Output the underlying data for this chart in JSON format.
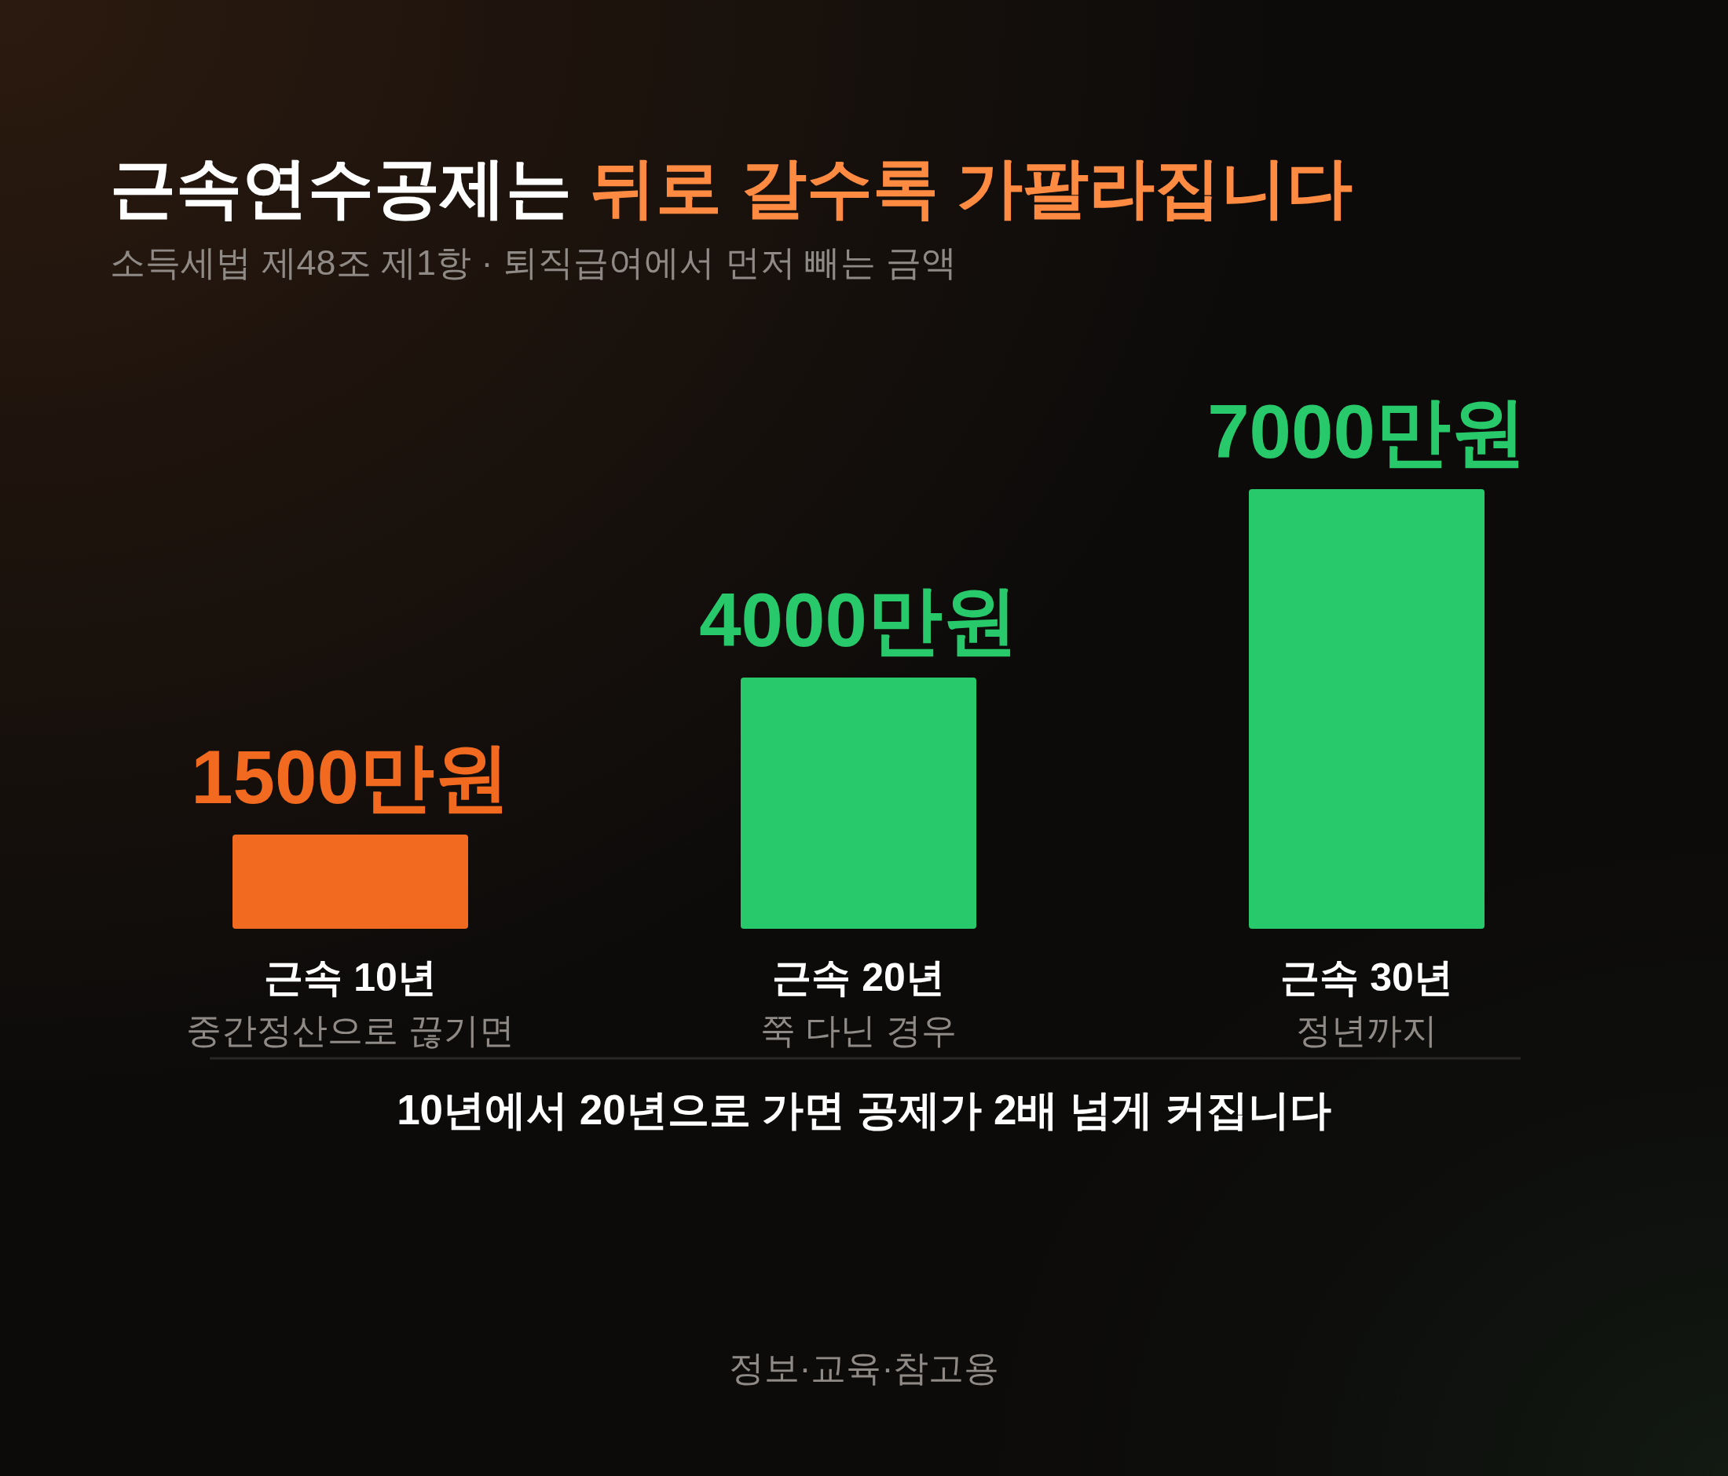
{
  "chart_data": {
    "type": "bar",
    "title": "근속연수공제는 뒤로 갈수록 가팔라집니다",
    "subtitle": "소득세법 제48조 제1항 · 퇴직급여에서 먼저 빼는 금액",
    "categories": [
      "근속 10년\n중간정산으로 끊기면",
      "근속 20년\n쭉 다닌 경우",
      "근속 30년\n정년까지"
    ],
    "values": [
      1500,
      4000,
      7000
    ],
    "value_labels": [
      "1500만원",
      "4000만원",
      "7000만원"
    ],
    "colors": [
      "#f26a1f",
      "#27c96a",
      "#27c96a"
    ],
    "annotations": [
      "10년에서 20년으로 가면 공제가 2배 넘게 커집니다",
      "정보·교육·참고용"
    ]
  }
}
